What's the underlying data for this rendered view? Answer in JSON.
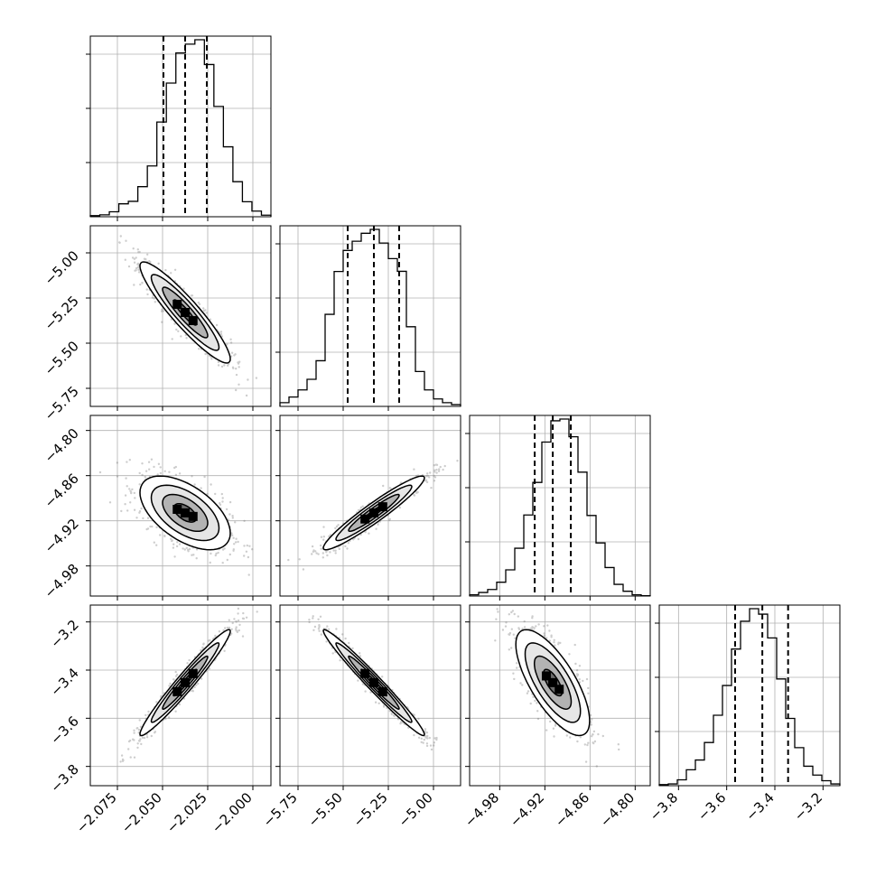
{
  "chart_data": {
    "type": "corner",
    "parameters": [
      {
        "index": 0,
        "range": [
          -2.09,
          -1.99
        ],
        "ticks": [
          -2.075,
          -2.05,
          -2.025,
          -2.0
        ],
        "tick_labels": [
          "−2.075",
          "−2.050",
          "−2.025",
          "−2.000"
        ],
        "quantiles": [
          -2.0495,
          -2.0375,
          -2.0255
        ],
        "hist": [
          0.006,
          0.011,
          0.028,
          0.073,
          0.087,
          0.17,
          0.287,
          0.535,
          0.755,
          0.925,
          0.975,
          1.0,
          0.86,
          0.623,
          0.395,
          0.198,
          0.085,
          0.032,
          0.009
        ]
      },
      {
        "index": 1,
        "range": [
          -5.85,
          -4.85
        ],
        "ticks": [
          -5.75,
          -5.5,
          -5.25,
          -5.0
        ],
        "tick_labels": [
          "−5.75",
          "−5.50",
          "−5.25",
          "−5.00"
        ],
        "quantiles": [
          -5.475,
          -5.33,
          -5.19
        ],
        "hist": [
          0.021,
          0.053,
          0.093,
          0.153,
          0.258,
          0.52,
          0.762,
          0.881,
          0.933,
          0.978,
          1.0,
          0.923,
          0.835,
          0.763,
          0.45,
          0.197,
          0.093,
          0.042,
          0.021,
          0.01
        ]
      },
      {
        "index": 2,
        "range": [
          -5.02,
          -4.78
        ],
        "ticks": [
          -4.98,
          -4.92,
          -4.86,
          -4.8
        ],
        "tick_labels": [
          "−4.98",
          "−4.92",
          "−4.86",
          "−4.80"
        ],
        "quantiles": [
          -4.9335,
          -4.9095,
          -4.8855
        ],
        "hist": [
          0.007,
          0.02,
          0.037,
          0.078,
          0.148,
          0.27,
          0.458,
          0.642,
          0.87,
          0.99,
          1.0,
          0.9,
          0.7,
          0.455,
          0.3,
          0.161,
          0.066,
          0.027,
          0.007,
          0.002
        ]
      },
      {
        "index": 3,
        "range": [
          -3.88,
          -3.13
        ],
        "ticks": [
          -3.8,
          -3.6,
          -3.4,
          -3.2
        ],
        "tick_labels": [
          "−3.8",
          "−3.6",
          "−3.4",
          "−3.2"
        ],
        "quantiles": [
          -3.565,
          -3.452,
          -3.345
        ],
        "hist": [
          0.006,
          0.01,
          0.033,
          0.09,
          0.145,
          0.244,
          0.398,
          0.566,
          0.772,
          0.929,
          1.0,
          0.969,
          0.835,
          0.603,
          0.38,
          0.215,
          0.11,
          0.06,
          0.028,
          0.01
        ]
      }
    ],
    "pairs": [
      {
        "x": 0,
        "y": 1,
        "center": [
          -2.0375,
          -5.33
        ],
        "sd": [
          0.0125,
          0.14
        ],
        "corr": -0.92
      },
      {
        "x": 0,
        "y": 2,
        "center": [
          -2.0375,
          -4.9095
        ],
        "sd": [
          0.0125,
          0.0245
        ],
        "corr": -0.55
      },
      {
        "x": 1,
        "y": 2,
        "center": [
          -5.33,
          -4.9095
        ],
        "sd": [
          0.14,
          0.0245
        ],
        "corr": 0.95
      },
      {
        "x": 0,
        "y": 3,
        "center": [
          -2.0375,
          -3.452
        ],
        "sd": [
          0.0125,
          0.11
        ],
        "corr": 0.97
      },
      {
        "x": 1,
        "y": 3,
        "center": [
          -5.33,
          -3.452
        ],
        "sd": [
          0.14,
          0.11
        ],
        "corr": -0.98
      },
      {
        "x": 2,
        "y": 3,
        "center": [
          -4.9095,
          -3.452
        ],
        "sd": [
          0.0245,
          0.11
        ],
        "corr": -0.72
      }
    ],
    "grid": true,
    "line_color": "#000000",
    "grid_color": "#b0b0b0",
    "point_color": "#707070"
  }
}
